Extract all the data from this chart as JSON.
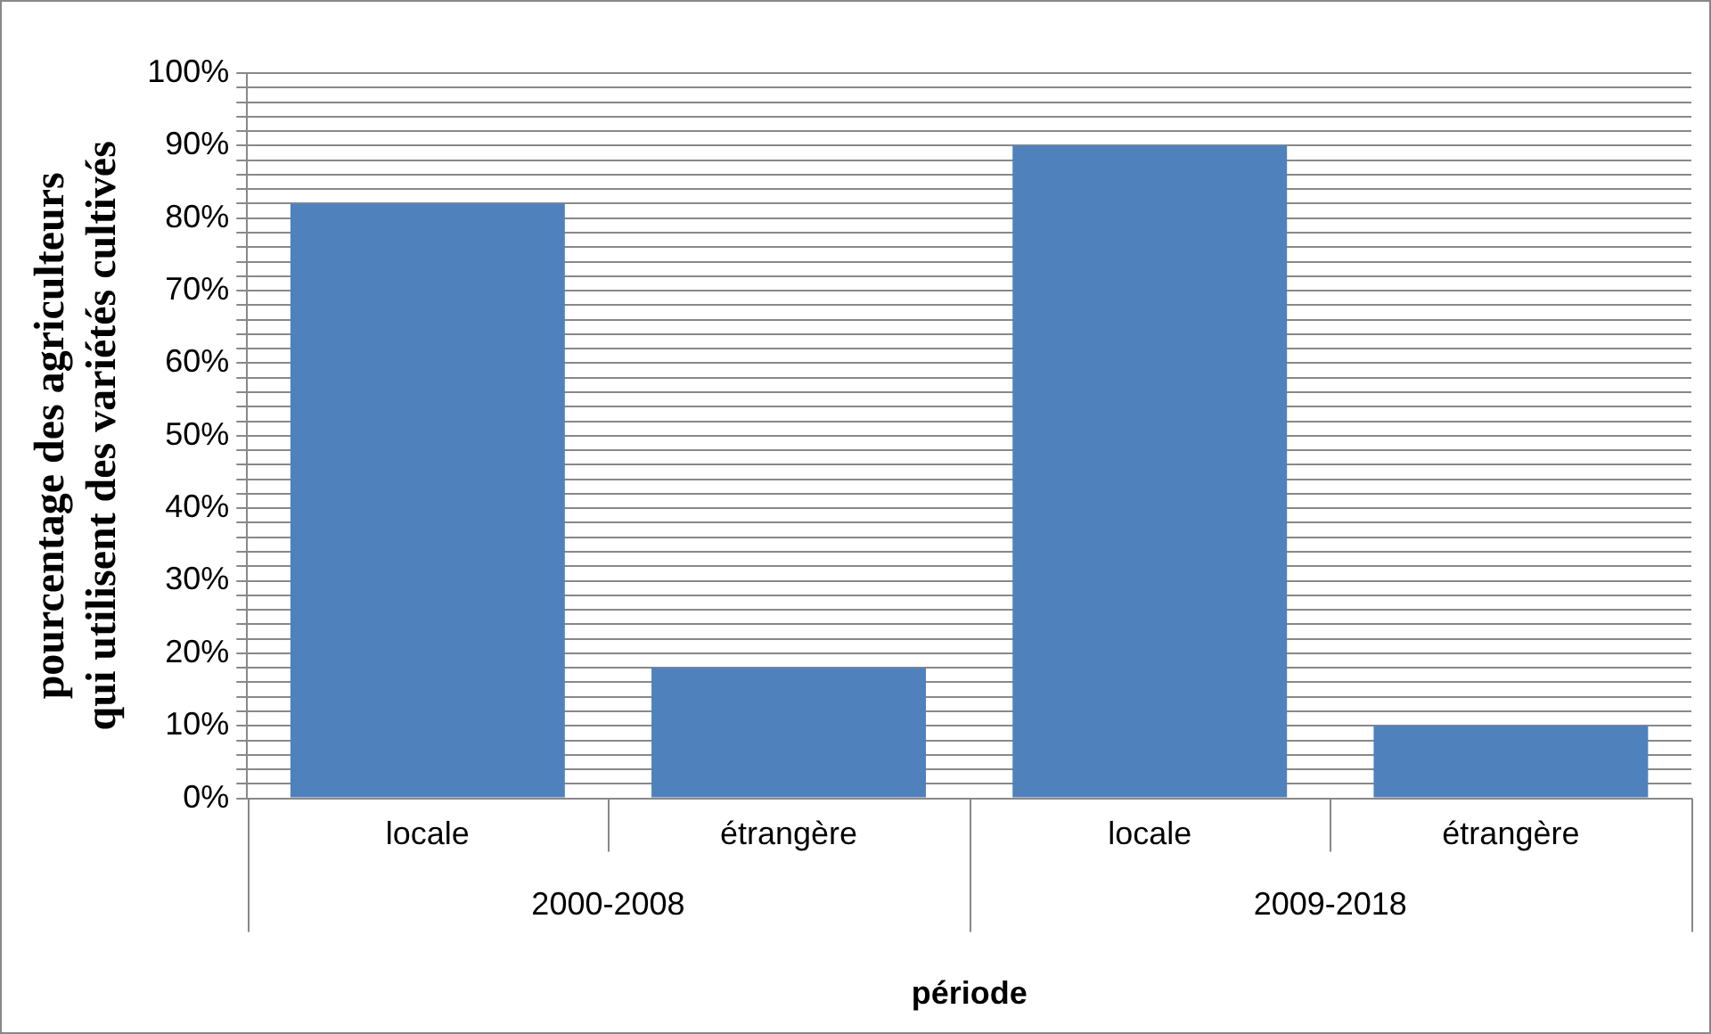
{
  "chart_data": {
    "type": "bar",
    "categories": [
      "locale",
      "étrangère",
      "locale",
      "étrangère"
    ],
    "values": [
      82,
      18,
      90,
      10
    ],
    "color": "#4f81bd",
    "ylabel": "pourcentage des agriculteurs\nqui utilisent des variétés cultivés",
    "xlabel": "période",
    "annotations": [
      "2000-2008",
      "2009-2018"
    ],
    "ylim": [
      0,
      100
    ],
    "yticks": [
      {
        "value": 0,
        "label": "0%"
      },
      {
        "value": 2,
        "label": null
      },
      {
        "value": 4,
        "label": null
      },
      {
        "value": 6,
        "label": null
      },
      {
        "value": 8,
        "label": null
      },
      {
        "value": 10,
        "label": "10%"
      },
      {
        "value": 12,
        "label": null
      },
      {
        "value": 14,
        "label": null
      },
      {
        "value": 16,
        "label": null
      },
      {
        "value": 18,
        "label": null
      },
      {
        "value": 20,
        "label": "20%"
      },
      {
        "value": 22,
        "label": null
      },
      {
        "value": 24,
        "label": null
      },
      {
        "value": 26,
        "label": null
      },
      {
        "value": 28,
        "label": null
      },
      {
        "value": 30,
        "label": "30%"
      },
      {
        "value": 32,
        "label": null
      },
      {
        "value": 34,
        "label": null
      },
      {
        "value": 36,
        "label": null
      },
      {
        "value": 38,
        "label": null
      },
      {
        "value": 40,
        "label": "40%"
      },
      {
        "value": 42,
        "label": null
      },
      {
        "value": 44,
        "label": null
      },
      {
        "value": 46,
        "label": null
      },
      {
        "value": 48,
        "label": null
      },
      {
        "value": 50,
        "label": "50%"
      },
      {
        "value": 52,
        "label": null
      },
      {
        "value": 54,
        "label": null
      },
      {
        "value": 56,
        "label": null
      },
      {
        "value": 58,
        "label": null
      },
      {
        "value": 60,
        "label": "60%"
      },
      {
        "value": 62,
        "label": null
      },
      {
        "value": 64,
        "label": null
      },
      {
        "value": 66,
        "label": null
      },
      {
        "value": 68,
        "label": null
      },
      {
        "value": 70,
        "label": "70%"
      },
      {
        "value": 72,
        "label": null
      },
      {
        "value": 74,
        "label": null
      },
      {
        "value": 76,
        "label": null
      },
      {
        "value": 78,
        "label": null
      },
      {
        "value": 80,
        "label": "80%"
      },
      {
        "value": 82,
        "label": null
      },
      {
        "value": 84,
        "label": null
      },
      {
        "value": 86,
        "label": null
      },
      {
        "value": 88,
        "label": null
      },
      {
        "value": 90,
        "label": "90%"
      },
      {
        "value": 92,
        "label": null
      },
      {
        "value": 94,
        "label": null
      },
      {
        "value": 96,
        "label": null
      },
      {
        "value": 98,
        "label": null
      },
      {
        "value": 100,
        "label": "100%"
      }
    ],
    "grid": "y",
    "legend": false
  }
}
